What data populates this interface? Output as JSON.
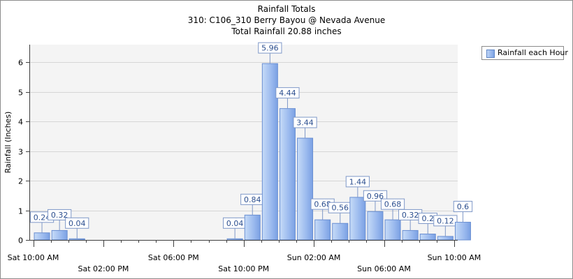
{
  "chart_data": {
    "type": "bar",
    "title_lines": [
      "Rainfall Totals",
      "310: C106_310 Berry Bayou @ Nevada Avenue",
      "Total Rainfall 20.88 inches"
    ],
    "ylabel": "Rainfall (Inches)",
    "ylim": [
      0,
      6.6
    ],
    "yticks": [
      "0",
      "1",
      "2",
      "3",
      "4",
      "5",
      "6"
    ],
    "grid": true,
    "legend": {
      "position": "top-right",
      "label": "Rainfall each Hour"
    },
    "x_tick_labels": [
      "Sat 10:00 AM",
      "Sat 02:00 PM",
      "Sat 06:00 PM",
      "Sat 10:00 PM",
      "Sun 02:00 AM",
      "Sun 06:00 AM",
      "Sun 10:00 AM"
    ],
    "series": [
      {
        "name": "Rainfall each Hour",
        "color": "#8fb1ea",
        "values": [
          0.24,
          0.32,
          0.04,
          0,
          0,
          0,
          0,
          0,
          0,
          0,
          0,
          0.04,
          0.84,
          5.96,
          4.44,
          3.44,
          0.68,
          0.56,
          1.44,
          0.96,
          0.68,
          0.32,
          0.2,
          0.12,
          0.6
        ],
        "labels": [
          "0.24",
          "0.32",
          "0.04",
          "",
          "",
          "",
          "",
          "",
          "",
          "",
          "",
          "0.04",
          "0.84",
          "5.96",
          "4.44",
          "3.44",
          "0.68",
          "0.56",
          "1.44",
          "0.96",
          "0.68",
          "0.32",
          "0.2",
          "0.12",
          "0.6"
        ]
      }
    ]
  }
}
